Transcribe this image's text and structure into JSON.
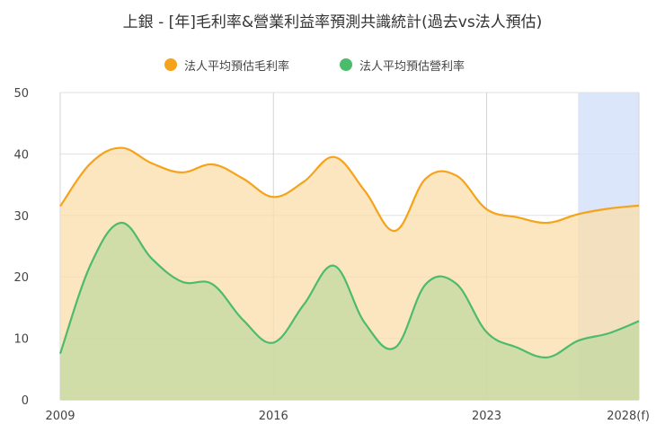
{
  "chart_data": {
    "type": "area",
    "title": "上銀 - [年]毛利率&營業利益率預測共識統計(過去vs法人預估)",
    "x": [
      2009,
      2010,
      2011,
      2012,
      2013,
      2014,
      2015,
      2016,
      2017,
      2018,
      2019,
      2020,
      2021,
      2022,
      2023,
      2024,
      2025,
      2026,
      2027,
      2028
    ],
    "x_tick_labels": [
      {
        "x": 2009,
        "label": "2009"
      },
      {
        "x": 2016,
        "label": "2016"
      },
      {
        "x": 2023,
        "label": "2023"
      },
      {
        "x": 2028,
        "label": "2028(f)"
      }
    ],
    "ylim": [
      0,
      50
    ],
    "y_ticks": [
      0,
      10,
      20,
      30,
      40,
      50
    ],
    "forecast_start": 2026,
    "series": [
      {
        "name": "法人平均預估毛利率",
        "color": "#f5a31a",
        "fill": "#f9ddab",
        "values": [
          31.5,
          38.5,
          41,
          38.5,
          37,
          38.3,
          36,
          33,
          35.5,
          39.5,
          34,
          27.5,
          36,
          36.5,
          31,
          29.7,
          28.8,
          30.2,
          31.1,
          31.6
        ]
      },
      {
        "name": "法人平均預估營利率",
        "color": "#4cbb6c",
        "fill": "#c2d9a2",
        "values": [
          7.5,
          22,
          28.8,
          23,
          19.2,
          18.8,
          13,
          9.3,
          15.5,
          21.8,
          12.5,
          8.5,
          18.8,
          18.9,
          11,
          8.5,
          6.9,
          9.6,
          10.8,
          12.8
        ]
      }
    ],
    "grid": true,
    "legend_position": "top"
  }
}
